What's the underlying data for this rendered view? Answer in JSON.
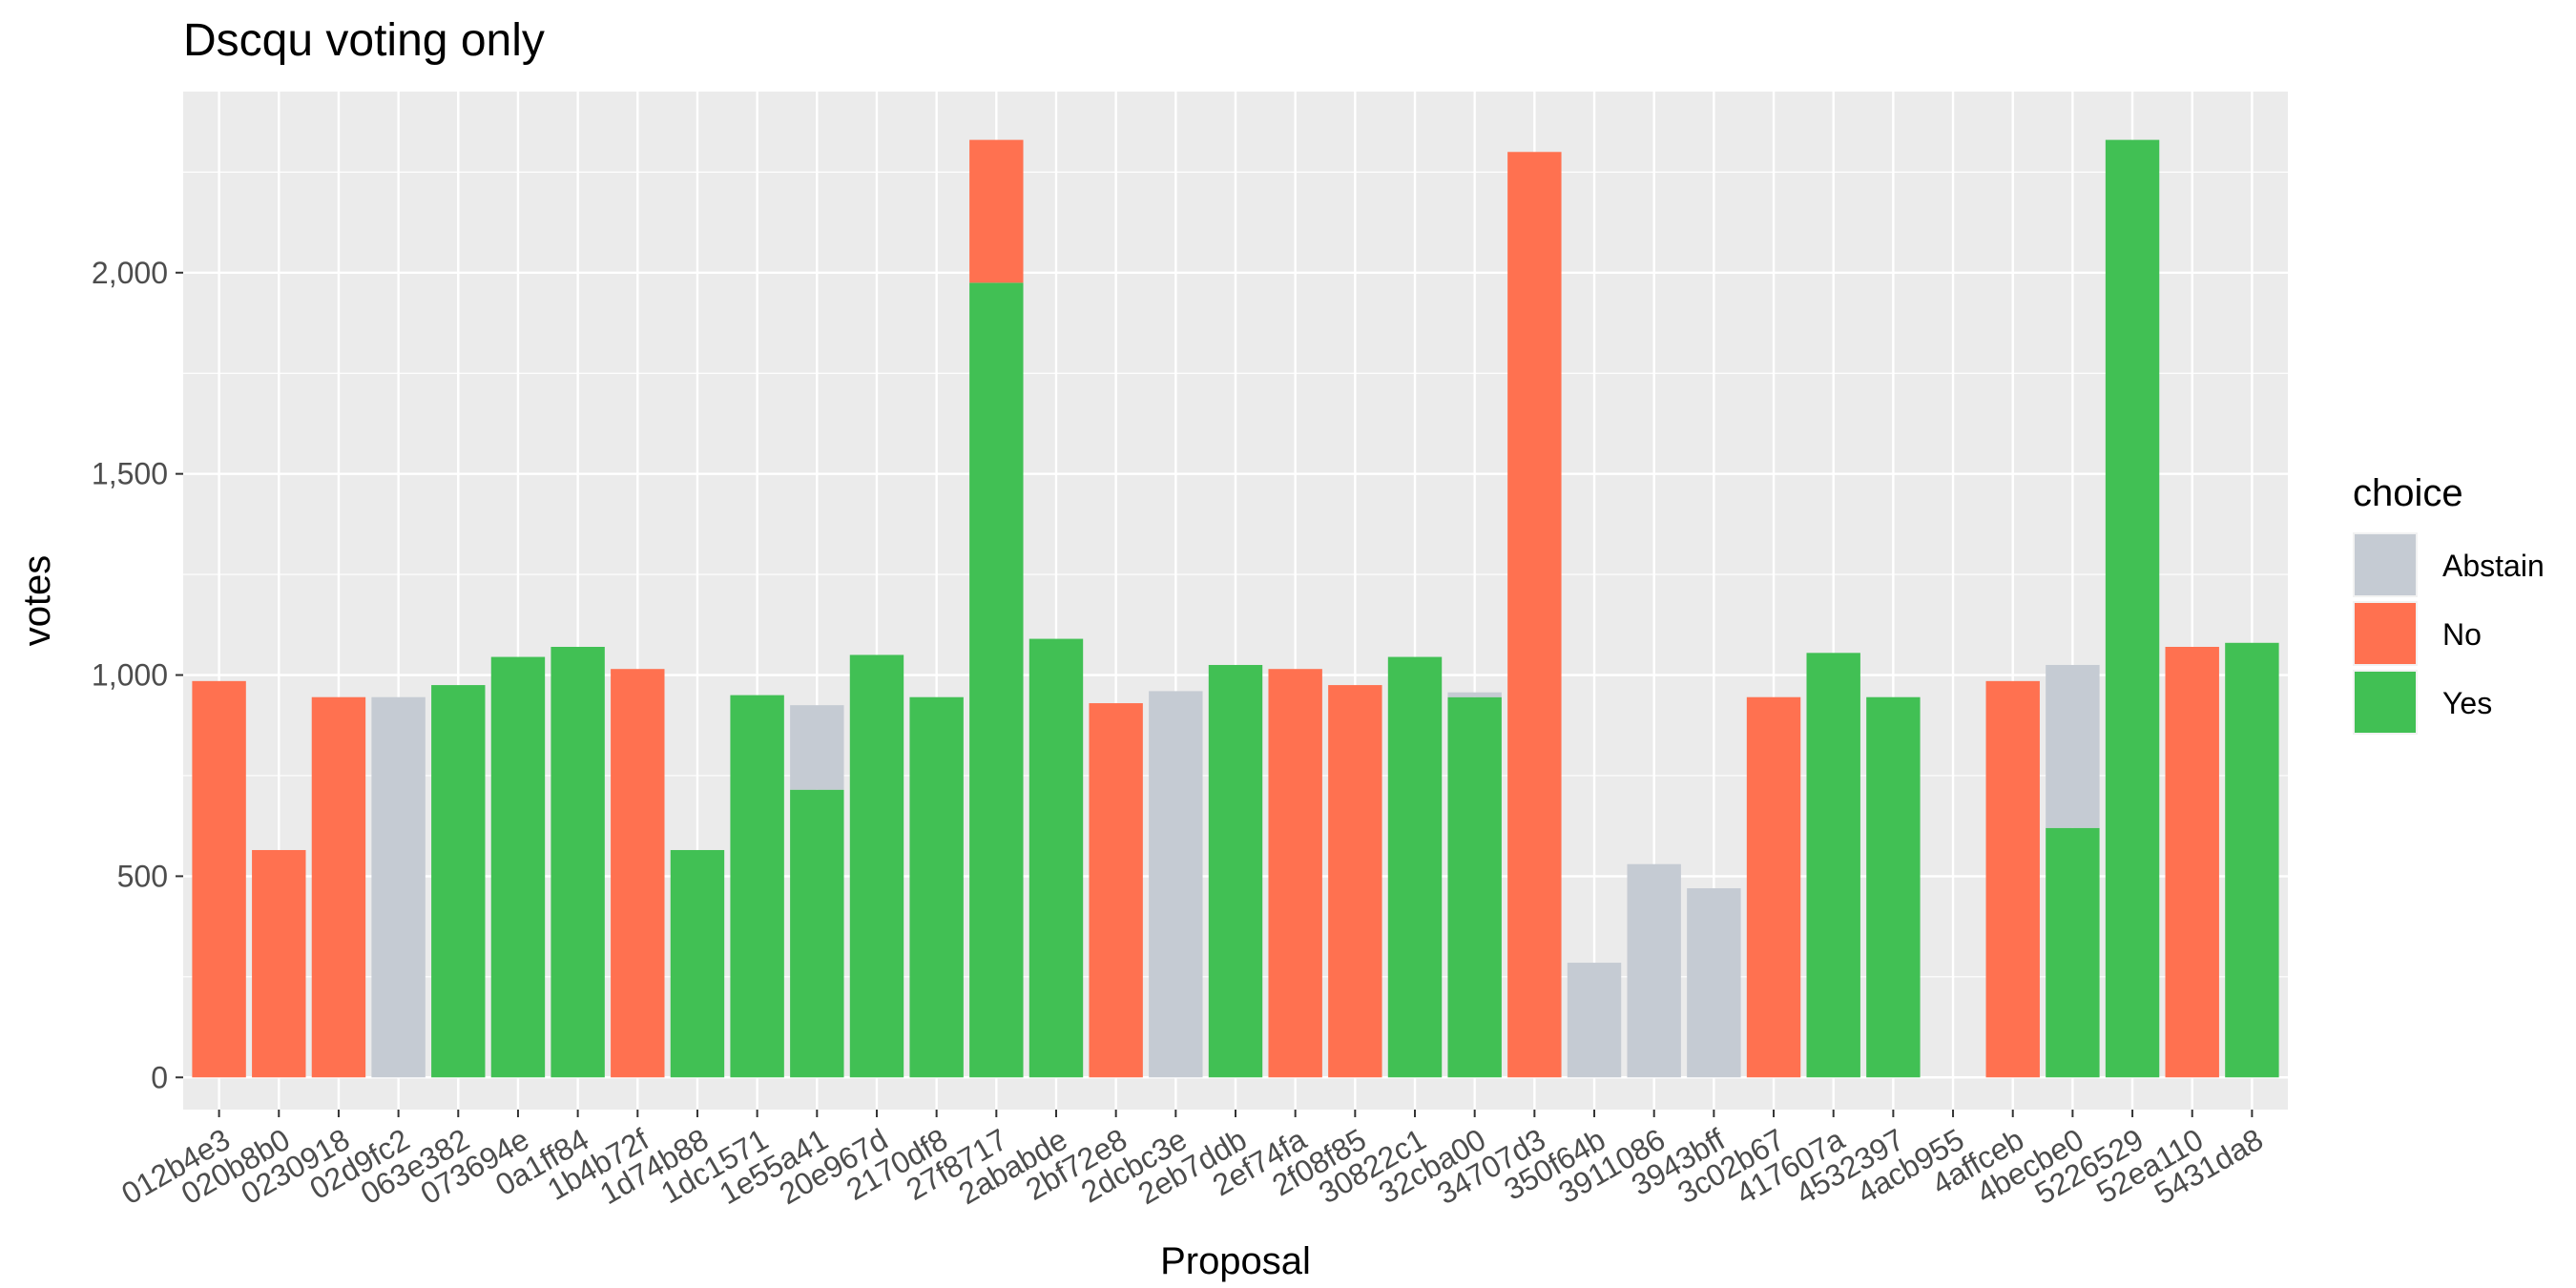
{
  "chart_data": {
    "type": "bar",
    "stacked": true,
    "title": "Dscqu  voting only",
    "xlabel": "Proposal",
    "ylabel": "votes",
    "ylim": [
      -80,
      2450
    ],
    "yticks": [
      0,
      500,
      1000,
      1500,
      2000
    ],
    "ytick_labels": [
      "0",
      "500",
      "1,000",
      "1,500",
      "2,000"
    ],
    "grid": true,
    "legend": {
      "title": "choice",
      "position": "right"
    },
    "categories": [
      "012b4e3",
      "020b8b0",
      "0230918",
      "02d9fc2",
      "063e382",
      "073694e",
      "0a1ff84",
      "1b4b72f",
      "1d74b88",
      "1dc1571",
      "1e55a41",
      "20e967d",
      "2170df8",
      "27f8717",
      "2ababde",
      "2bf72e8",
      "2dcbc3e",
      "2eb7ddb",
      "2ef74fa",
      "2f08f85",
      "30822c1",
      "32cba00",
      "34707d3",
      "350f64b",
      "3911086",
      "3943bff",
      "3c02b67",
      "417607a",
      "4532397",
      "4acb955",
      "4affceb",
      "4becbe0",
      "5226529",
      "52ea110",
      "5431da8"
    ],
    "series": [
      {
        "name": "Abstain",
        "color": "#c5cbd3",
        "values": [
          0,
          0,
          0,
          945,
          0,
          0,
          0,
          0,
          0,
          0,
          210,
          0,
          0,
          0,
          0,
          0,
          960,
          0,
          0,
          0,
          0,
          12,
          0,
          285,
          530,
          470,
          0,
          0,
          0,
          0,
          0,
          405,
          0,
          0,
          0
        ]
      },
      {
        "name": "No",
        "color": "#ff7150",
        "values": [
          985,
          565,
          945,
          0,
          0,
          0,
          0,
          1015,
          0,
          0,
          0,
          0,
          0,
          355,
          0,
          930,
          0,
          0,
          1015,
          975,
          0,
          0,
          2300,
          0,
          0,
          0,
          945,
          0,
          0,
          0,
          985,
          0,
          0,
          1070,
          0
        ]
      },
      {
        "name": "Yes",
        "color": "#41c054",
        "values": [
          0,
          0,
          0,
          0,
          975,
          1045,
          1070,
          0,
          565,
          950,
          715,
          1050,
          945,
          1975,
          1090,
          0,
          0,
          1025,
          0,
          0,
          1045,
          945,
          0,
          0,
          0,
          0,
          0,
          1055,
          945,
          0,
          0,
          620,
          2330,
          0,
          1080
        ]
      }
    ]
  }
}
